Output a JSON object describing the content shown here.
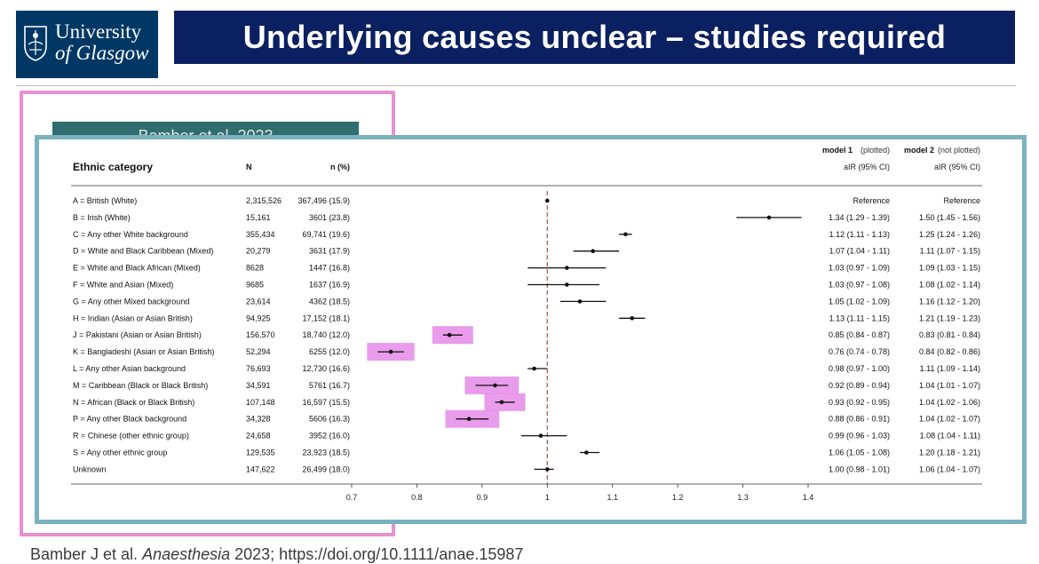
{
  "header": {
    "logo_line1": "University",
    "logo_line2": "of Glasgow",
    "title": "Underlying causes unclear – studies required"
  },
  "underlying_panel": {
    "label": "Bamber et al. 2023"
  },
  "table": {
    "col_ethnic": "Ethnic category",
    "col_n": "N",
    "col_npct": "n (%)",
    "col_m1_title": "model 1",
    "col_m1_sub": "(plotted)",
    "col_m2_title": "model 2",
    "col_m2_sub": "(not plotted)",
    "col_m1_air": "aIR (95% CI)",
    "col_m2_air": "aIR (95% CI)"
  },
  "chart_data": {
    "type": "forest",
    "xlim": [
      0.7,
      1.4
    ],
    "x_ticks": [
      "0.7",
      "0.8",
      "0.9",
      "1",
      "1.1",
      "1.2",
      "1.3",
      "1.4"
    ],
    "reference_line": 1.0,
    "rows": [
      {
        "label": "A = British (White)",
        "N": "2,315,526",
        "n": "367,496 (15.9)",
        "est": 1.0,
        "lo": 1.0,
        "hi": 1.0,
        "m1": "Reference",
        "m2": "Reference",
        "highlight": false
      },
      {
        "label": "B = Irish (White)",
        "N": "15,161",
        "n": "3601 (23.8)",
        "est": 1.34,
        "lo": 1.29,
        "hi": 1.39,
        "m1": "1.34 (1.29 - 1.39)",
        "m2": "1.50 (1.45 - 1.56)",
        "highlight": false
      },
      {
        "label": "C = Any other White background",
        "N": "355,434",
        "n": "69,741 (19.6)",
        "est": 1.12,
        "lo": 1.11,
        "hi": 1.13,
        "m1": "1.12 (1.11 - 1.13)",
        "m2": "1.25 (1.24 - 1.26)",
        "highlight": false
      },
      {
        "label": "D = White and Black Caribbean (Mixed)",
        "N": "20,279",
        "n": "3631 (17.9)",
        "est": 1.07,
        "lo": 1.04,
        "hi": 1.11,
        "m1": "1.07 (1.04 - 1.11)",
        "m2": "1.11 (1.07 - 1.15)",
        "highlight": false
      },
      {
        "label": "E = White and Black African (Mixed)",
        "N": "8628",
        "n": "1447 (16.8)",
        "est": 1.03,
        "lo": 0.97,
        "hi": 1.09,
        "m1": "1.03 (0.97 - 1.09)",
        "m2": "1.09 (1.03 - 1.15)",
        "highlight": false
      },
      {
        "label": "F = White and Asian (Mixed)",
        "N": "9685",
        "n": "1637 (16.9)",
        "est": 1.03,
        "lo": 0.97,
        "hi": 1.08,
        "m1": "1.03 (0.97 - 1.08)",
        "m2": "1.08 (1.02 - 1.14)",
        "highlight": false
      },
      {
        "label": "G = Any other Mixed background",
        "N": "23,614",
        "n": "4362 (18.5)",
        "est": 1.05,
        "lo": 1.02,
        "hi": 1.09,
        "m1": "1.05 (1.02 - 1.09)",
        "m2": "1.16 (1.12 - 1.20)",
        "highlight": false
      },
      {
        "label": "H = Indian (Asian or Asian British)",
        "N": "94,925",
        "n": "17,152 (18.1)",
        "est": 1.13,
        "lo": 1.11,
        "hi": 1.15,
        "m1": "1.13 (1.11 - 1.15)",
        "m2": "1.21 (1.19 - 1.23)",
        "highlight": false
      },
      {
        "label": "J = Pakistani (Asian or Asian British)",
        "N": "156,570",
        "n": "18,740 (12.0)",
        "est": 0.85,
        "lo": 0.84,
        "hi": 0.87,
        "m1": "0.85 (0.84 - 0.87)",
        "m2": "0.83 (0.81 - 0.84)",
        "highlight": true
      },
      {
        "label": "K = Bangladeshi (Asian or Asian British)",
        "N": "52,294",
        "n": "6255 (12.0)",
        "est": 0.76,
        "lo": 0.74,
        "hi": 0.78,
        "m1": "0.76 (0.74 - 0.78)",
        "m2": "0.84 (0.82 - 0.86)",
        "highlight": true
      },
      {
        "label": "L = Any other Asian background",
        "N": "76,693",
        "n": "12,730 (16.6)",
        "est": 0.98,
        "lo": 0.97,
        "hi": 1.0,
        "m1": "0.98 (0.97 - 1.00)",
        "m2": "1.11 (1.09 - 1.14)",
        "highlight": false
      },
      {
        "label": "M = Caribbean (Black or Black British)",
        "N": "34,591",
        "n": "5761 (16.7)",
        "est": 0.92,
        "lo": 0.89,
        "hi": 0.94,
        "m1": "0.92 (0.89 - 0.94)",
        "m2": "1.04 (1.01 - 1.07)",
        "highlight": true
      },
      {
        "label": "N = African (Black or Black British)",
        "N": "107,148",
        "n": "16,597 (15.5)",
        "est": 0.93,
        "lo": 0.92,
        "hi": 0.95,
        "m1": "0.93 (0.92 - 0.95)",
        "m2": "1.04 (1.02 - 1.06)",
        "highlight": true
      },
      {
        "label": "P = Any other Black background",
        "N": "34,328",
        "n": "5606 (16.3)",
        "est": 0.88,
        "lo": 0.86,
        "hi": 0.91,
        "m1": "0.88 (0.86 - 0.91)",
        "m2": "1.04 (1.02 - 1.07)",
        "highlight": true
      },
      {
        "label": "R = Chinese (other ethnic group)",
        "N": "24,658",
        "n": "3952 (16.0)",
        "est": 0.99,
        "lo": 0.96,
        "hi": 1.03,
        "m1": "0.99 (0.96 - 1.03)",
        "m2": "1.08 (1.04 - 1.11)",
        "highlight": false
      },
      {
        "label": "S = Any other ethnic group",
        "N": "129,535",
        "n": "23,923 (18.5)",
        "est": 1.06,
        "lo": 1.05,
        "hi": 1.08,
        "m1": "1.06 (1.05 - 1.08)",
        "m2": "1.20 (1.18 - 1.21)",
        "highlight": false
      },
      {
        "label": "Unknown",
        "N": "147,622",
        "n": "26,499 (18.0)",
        "est": 1.0,
        "lo": 0.98,
        "hi": 1.01,
        "m1": "1.00 (0.98 - 1.01)",
        "m2": "1.06 (1.04 - 1.07)",
        "highlight": false
      }
    ]
  },
  "citation": {
    "prefix": "Bamber J et al. ",
    "journal": "Anaesthesia",
    "suffix": " 2023; https://doi.org/10.1111/anae.15987"
  },
  "colors": {
    "header_bg": "#0b2060",
    "logo_bg": "#003865",
    "pink_frame": "#e98fd2",
    "highlight": "#e58be8",
    "teal_frame": "#7ab2bf",
    "ref_line": "#a0525a"
  }
}
